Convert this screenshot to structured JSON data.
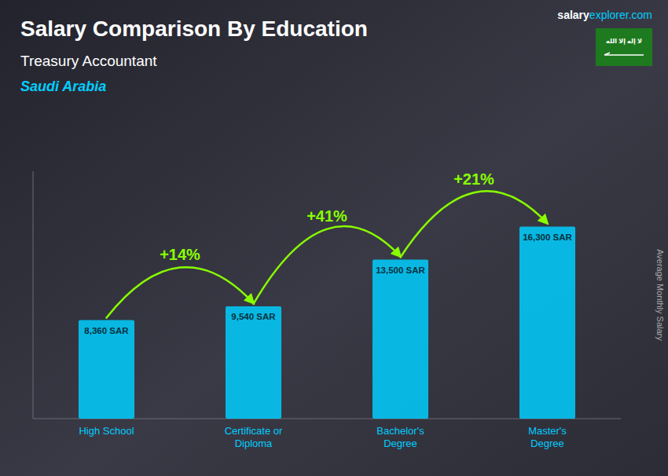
{
  "chart_data": {
    "type": "bar",
    "title": "Salary Comparison By Education",
    "subtitle": "Treasury Accountant",
    "country": "Saudi Arabia",
    "source": [
      "salary",
      "explorer.com"
    ],
    "flag": {
      "text": "لا إله إلا الله",
      "color": "#1e7a1e"
    },
    "y_label": "Average Monthly Salary",
    "categories": [
      "High School",
      "Certificate or\nDiploma",
      "Bachelor's\nDegree",
      "Master's\nDegree"
    ],
    "values": [
      8360,
      9540,
      13500,
      16300
    ],
    "value_labels": [
      "8,360 SAR",
      "9,540 SAR",
      "13,500 SAR",
      "16,300 SAR"
    ],
    "data_labels": true,
    "color": "#00cfff",
    "ylim": [
      0,
      21000
    ],
    "tick_labels": "x",
    "grid": false,
    "annotations": [
      {
        "text": "+14%",
        "color": "#88ff00"
      },
      {
        "text": "+41%",
        "color": "#88ff00"
      },
      {
        "text": "+21%",
        "color": "#88ff00"
      }
    ]
  }
}
